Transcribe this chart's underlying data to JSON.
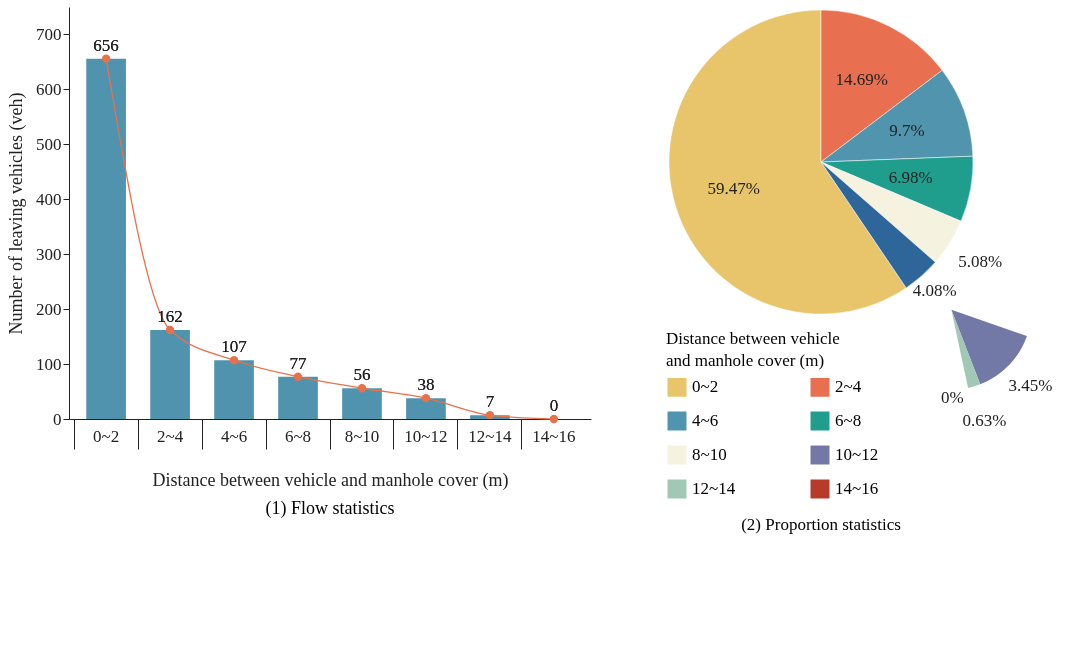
{
  "chart_data": [
    {
      "type": "bar",
      "title": "(1) Flow statistics",
      "xlabel": "Distance between vehicle and manhole cover (m)",
      "ylabel": "Number of leaving vehicles (veh)",
      "categories": [
        "0~2",
        "2~4",
        "4~6",
        "6~8",
        "8~10",
        "10~12",
        "12~14",
        "14~16"
      ],
      "series": [
        {
          "type": "bar",
          "color": "#5093ae",
          "values": [
            656,
            162,
            107,
            77,
            56,
            38,
            7,
            0
          ],
          "value_labels": [
            "656",
            "162",
            "107",
            "77",
            "56",
            "38",
            "7",
            "0"
          ]
        },
        {
          "type": "line",
          "color": "#e8714a",
          "values": [
            656,
            162,
            107,
            77,
            56,
            38,
            7,
            0
          ]
        }
      ],
      "marker": "circle",
      "data_labels": true,
      "ylim": [
        0,
        750
      ],
      "yticks": [
        0,
        100,
        200,
        300,
        400,
        500,
        600,
        700
      ]
    },
    {
      "type": "pie",
      "title": "(2) Proportion statistics",
      "legend": "bottom",
      "legend_title": "Distance between vehicle and manhole cover (m)",
      "categories": [
        "0~2",
        "2~4",
        "4~6",
        "6~8",
        "8~10",
        null
      ],
      "values": [
        59.47,
        14.69,
        9.7,
        6.98,
        5.08,
        4.08
      ],
      "colors": [
        "#e8c46a",
        "#e87050",
        "#5094ae",
        "#1f9e8e",
        "#f5f2e0",
        "#2e6699"
      ],
      "value_labels": [
        "59.47%",
        "14.69%",
        "9.7%",
        "6.98%",
        "5.08%",
        "4.08%"
      ]
    },
    {
      "type": "pie",
      "categories": [
        "10~12",
        "12~14",
        "14~16"
      ],
      "values": [
        3.45,
        0.63,
        0
      ],
      "colors": [
        "#7279a6",
        "#a0c8b4",
        "#b83a2a"
      ],
      "value_labels": [
        "3.45%",
        "0.63%",
        "0%"
      ],
      "legend": "bottom"
    }
  ]
}
